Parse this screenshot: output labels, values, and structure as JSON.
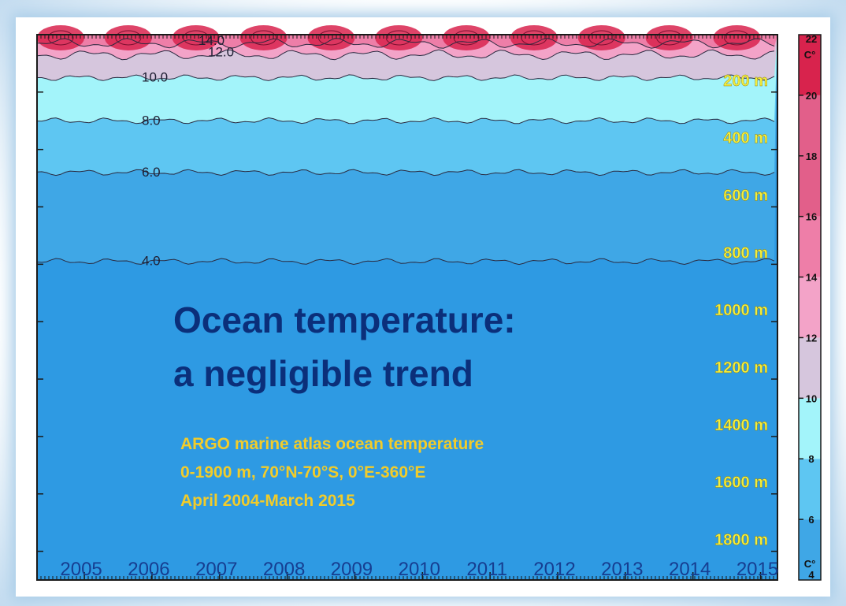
{
  "chart_data": {
    "type": "heatmap",
    "subtype": "depth-time temperature contour",
    "title": "Ocean temperature:",
    "title_line2": "a negligible trend",
    "subtitle_lines": [
      "ARGO marine atlas ocean temperature",
      "0-1900 m, 70°N-70°S, 0°E-360°E",
      "April 2004-March 2015"
    ],
    "x": {
      "ticks": [
        "2005",
        "2006",
        "2007",
        "2008",
        "2009",
        "2010",
        "2011",
        "2012",
        "2013",
        "2014",
        "2015"
      ],
      "range": [
        2004.3,
        2015.25
      ]
    },
    "y": {
      "ticks": [
        "200 m",
        "400 m",
        "600 m",
        "800 m",
        "1000 m",
        "1200 m",
        "1400 m",
        "1600 m",
        "1800 m"
      ],
      "range": [
        0,
        1900
      ],
      "unit": "m",
      "inverted": true
    },
    "contours": [
      {
        "label": "14.0",
        "value": 14.0,
        "depth_m": 30
      },
      {
        "label": "12.0",
        "value": 12.0,
        "depth_m": 70
      },
      {
        "label": "10.0",
        "value": 10.0,
        "depth_m": 150
      },
      {
        "label": "8.0",
        "value": 8.0,
        "depth_m": 300
      },
      {
        "label": "6.0",
        "value": 6.0,
        "depth_m": 480
      },
      {
        "label": "4.0",
        "value": 4.0,
        "depth_m": 790
      }
    ],
    "bands": [
      {
        "from_c": 4,
        "to_c": 6,
        "color": "#3fa7e6"
      },
      {
        "from_c": 6,
        "to_c": 8,
        "color": "#5ec6f2"
      },
      {
        "from_c": 8,
        "to_c": 10,
        "color": "#a3f4fa"
      },
      {
        "from_c": 10,
        "to_c": 12,
        "color": "#d6c6dd"
      },
      {
        "from_c": 12,
        "to_c": 14,
        "color": "#f3a3c8"
      },
      {
        "from_c": 14,
        "to_c": 16,
        "color": "#ee7ea8"
      },
      {
        "from_c": 16,
        "to_c": 20,
        "color": "#e25f8a"
      },
      {
        "from_c": 20,
        "to_c": 22,
        "color": "#d8234d"
      }
    ],
    "colorbar": {
      "ticks": [
        "22",
        "20",
        "18",
        "16",
        "14",
        "12",
        "10",
        "8",
        "6",
        "4"
      ],
      "unit_label": "C°",
      "range": [
        4,
        22
      ]
    },
    "colors": {
      "deep_water": "#2e9ae3",
      "title_text": "#0b2f7a",
      "subtitle_text": "#f2cc2a",
      "depth_label_text": "#f4ee3c",
      "year_label_text": "#163e91"
    }
  }
}
